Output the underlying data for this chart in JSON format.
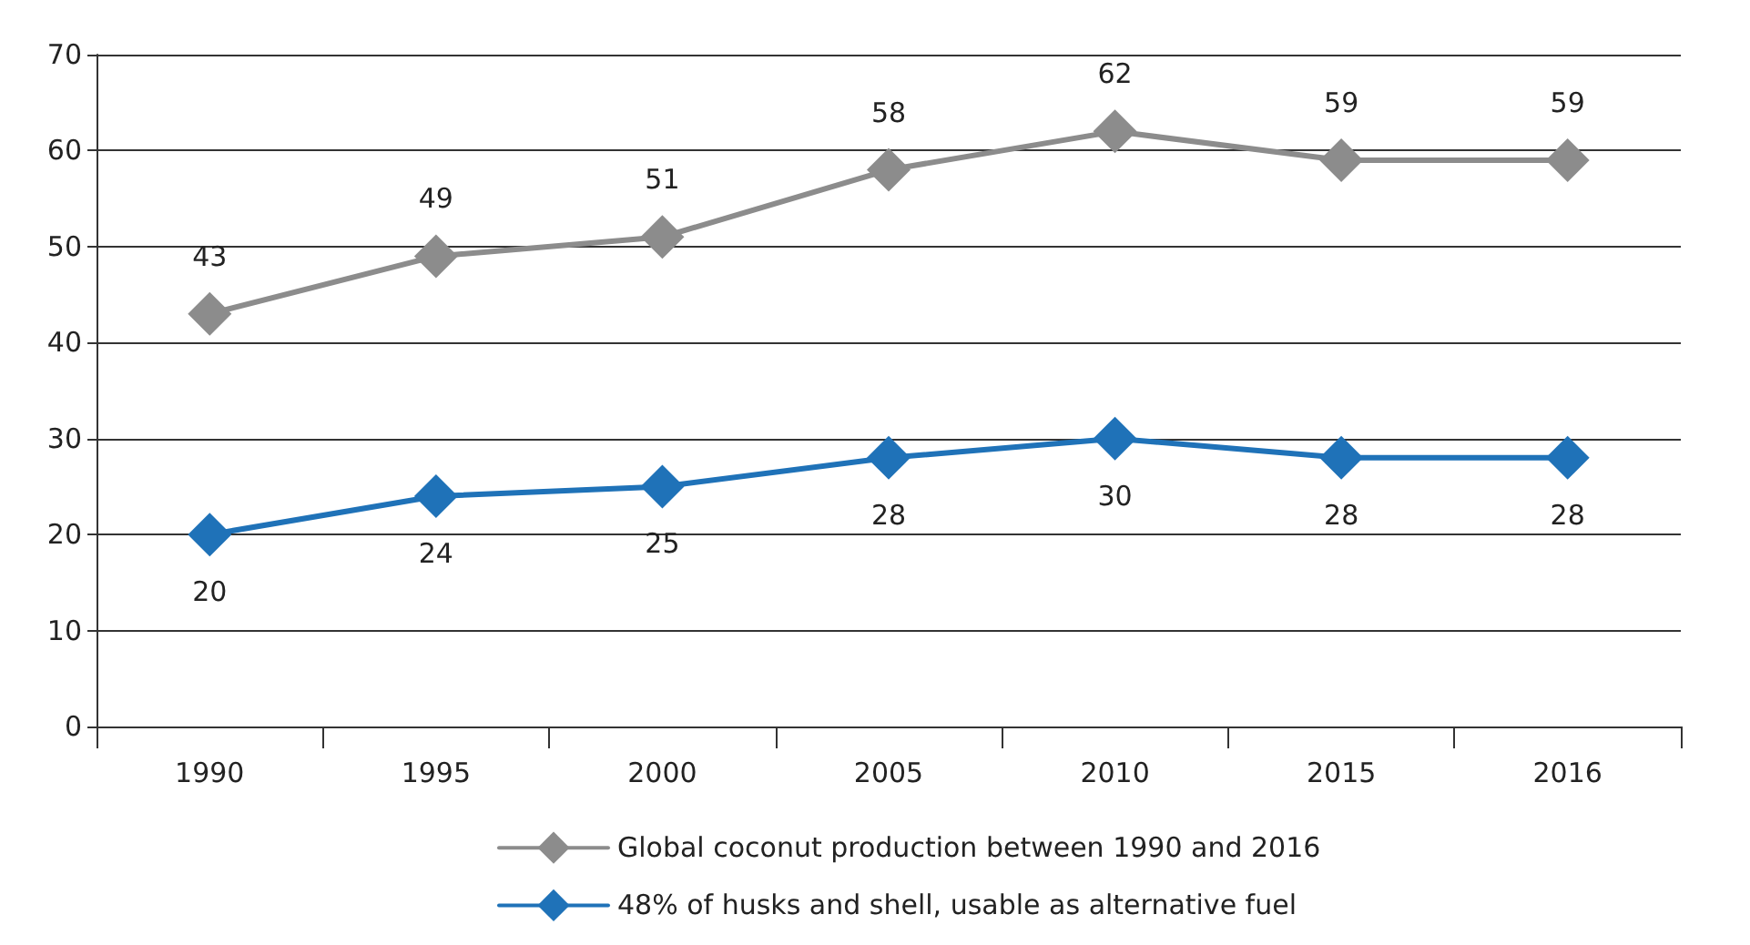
{
  "chart_data": {
    "type": "line",
    "categories": [
      "1990",
      "1995",
      "2000",
      "2005",
      "2010",
      "2015",
      "2016"
    ],
    "series": [
      {
        "name": "Global coconut production between 1990 and 2016",
        "color": "#8c8c8c",
        "values": [
          43,
          49,
          51,
          58,
          62,
          59,
          59
        ]
      },
      {
        "name": "48% of husks and shell, usable as alternative fuel",
        "color": "#1f72b8",
        "values": [
          20,
          24,
          25,
          28,
          30,
          28,
          28
        ]
      }
    ],
    "ylim": [
      0,
      70
    ],
    "yticks": [
      0,
      10,
      20,
      30,
      40,
      50,
      60,
      70
    ],
    "grid": "y",
    "legend": "bottom",
    "marker": "diamond",
    "line_style": "solid",
    "data_labels": true
  }
}
